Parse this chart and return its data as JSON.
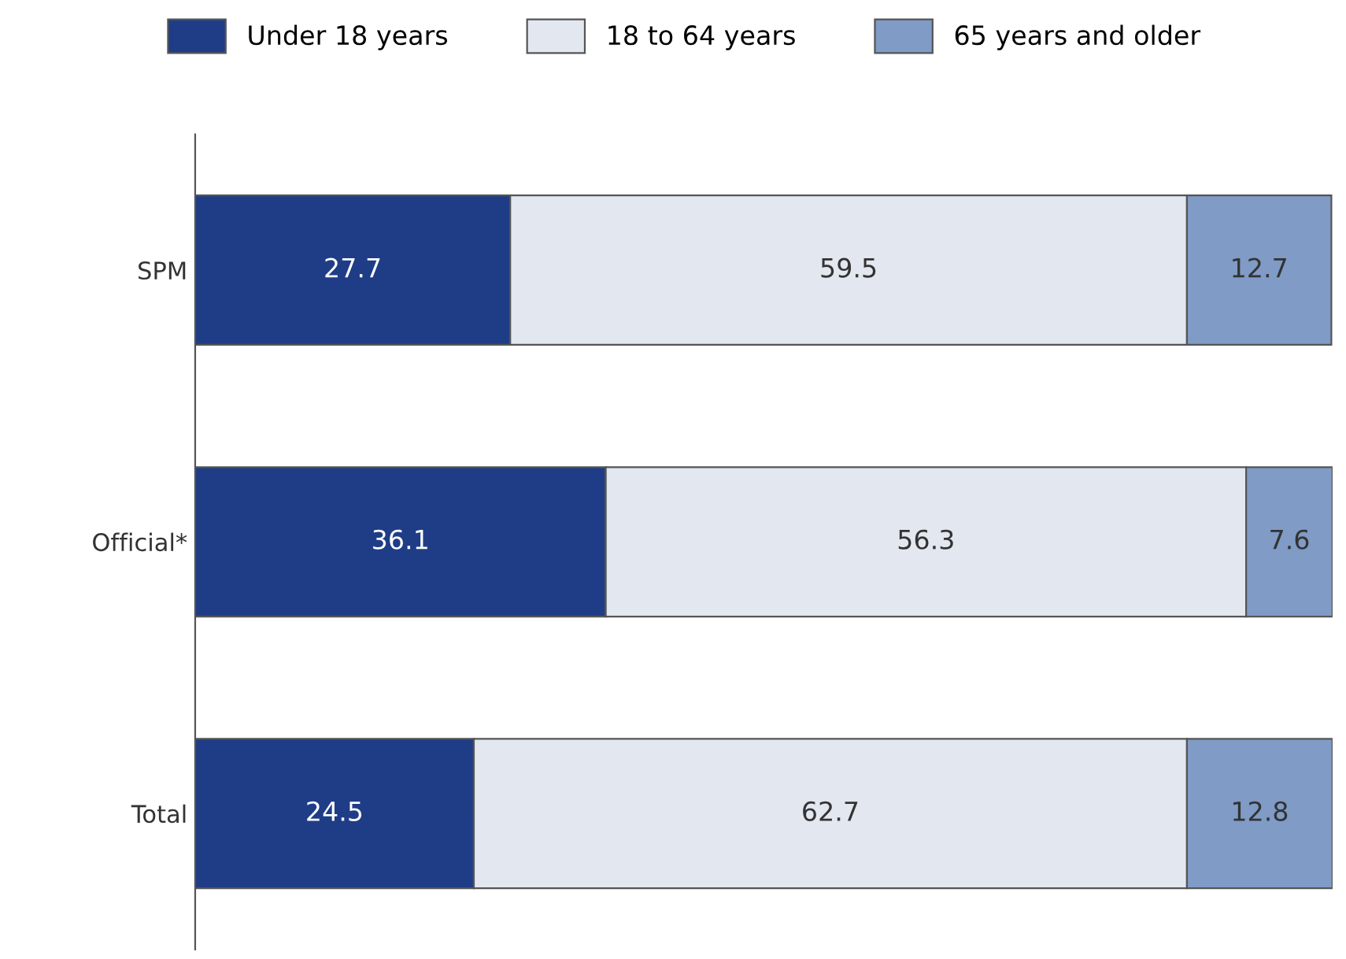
{
  "chart_data": {
    "type": "bar",
    "orientation": "horizontal",
    "stacked": true,
    "data_labels": true,
    "legend": "top",
    "grid": false,
    "tick_labels": "y",
    "categories": [
      "SPM",
      "Official*",
      "Total"
    ],
    "series": [
      {
        "name": "Under 18 years",
        "color": "#1f3d87",
        "values": [
          27.7,
          36.1,
          24.5
        ]
      },
      {
        "name": "18 to 64 years",
        "color": "#e3e7ef",
        "values": [
          59.5,
          56.3,
          62.7
        ]
      },
      {
        "name": "65 years and older",
        "color": "#7f9bc6",
        "values": [
          12.7,
          7.6,
          12.8
        ]
      }
    ]
  }
}
